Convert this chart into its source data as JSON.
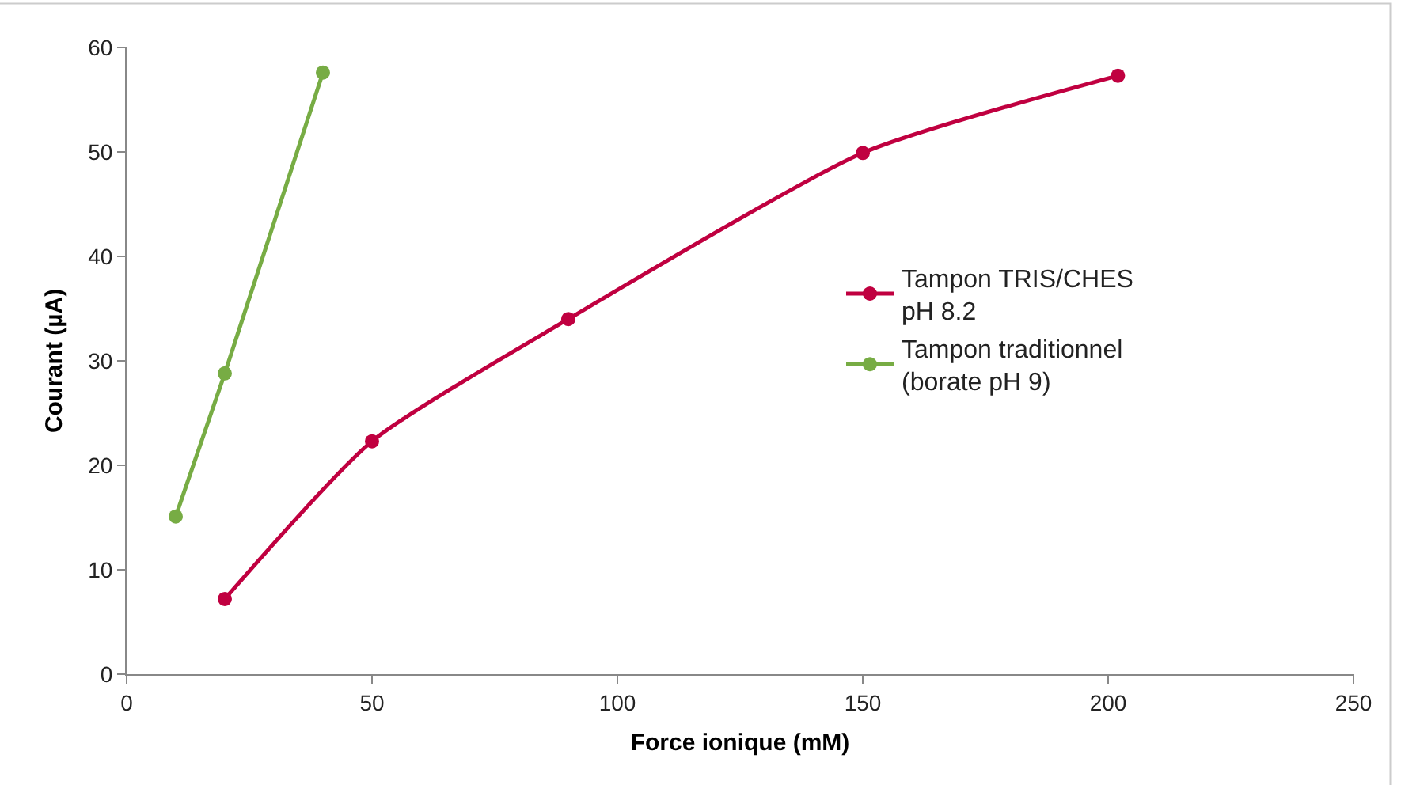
{
  "chart_data": {
    "type": "line",
    "xlabel": "Force ionique (mM)",
    "ylabel": "Courant (µA)",
    "xlim": [
      0,
      250
    ],
    "xticks": [
      0,
      50,
      100,
      150,
      200,
      250
    ],
    "ylim": [
      0,
      60
    ],
    "yticks": [
      0,
      10,
      20,
      30,
      40,
      50,
      60
    ],
    "grid": false,
    "legend": "right",
    "marker": "circle",
    "line_style": "solid",
    "series": [
      {
        "name": "Tampon TRIS/CHES\npH 8.2",
        "color": "#c00040",
        "x": [
          20,
          50,
          90,
          150,
          202
        ],
        "values": [
          7.2,
          22.3,
          34.0,
          49.9,
          57.3
        ]
      },
      {
        "name": "Tampon traditionnel\n(borate pH 9)",
        "color": "#77ac44",
        "x": [
          10,
          20,
          40
        ],
        "values": [
          15.1,
          28.8,
          57.6
        ]
      }
    ]
  }
}
